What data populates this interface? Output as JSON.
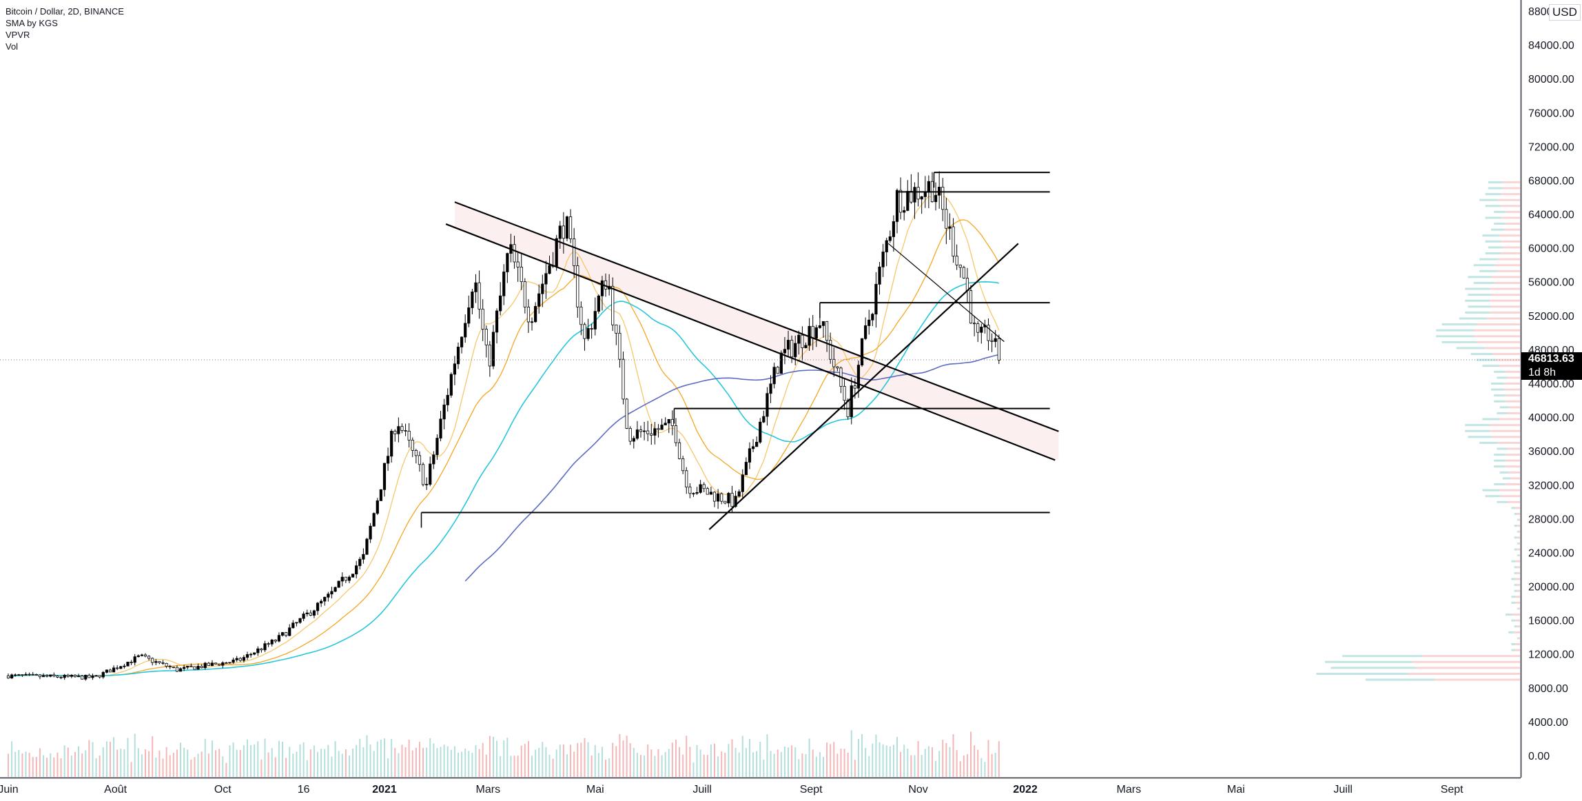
{
  "legend": {
    "symbol": "Bitcoin / Dollar, 2D, BINANCE",
    "indicator_sma": "SMA by KGS",
    "indicator_vpvr": "VPVR",
    "indicator_vol": "Vol"
  },
  "currency": "USD",
  "last_price": "46813.63",
  "countdown": "1d 8h",
  "colors": {
    "up": "#000000",
    "down": "#ffffff",
    "sma_short": "#f7c66b",
    "sma_mid": "#f5a623",
    "sma_long": "#26c6da",
    "sma_longest": "#5c6bc0",
    "vol_up": "#b2dfdb",
    "vol_down": "#f4b6b6",
    "channel": "#fbeff0"
  },
  "chart_data": {
    "type": "candlestick",
    "symbol": "Bitcoin / Dollar",
    "timeframe": "2D",
    "exchange": "BINANCE",
    "grid": false,
    "y_range": [
      -2500,
      88000
    ],
    "y_ticks": [
      "88000.00",
      "84000.00",
      "80000.00",
      "76000.00",
      "72000.00",
      "68000.00",
      "64000.00",
      "60000.00",
      "56000.00",
      "52000.00",
      "48000.00",
      "44000.00",
      "40000.00",
      "36000.00",
      "32000.00",
      "28000.00",
      "24000.00",
      "20000.00",
      "16000.00",
      "12000.00",
      "8000.00",
      "4000.00",
      "0.00"
    ],
    "x_ticks": [
      {
        "label": "Juin",
        "date": "2020-06-01"
      },
      {
        "label": "Août",
        "date": "2020-08-01"
      },
      {
        "label": "Oct",
        "date": "2020-10-01"
      },
      {
        "label": "16",
        "date": "2020-11-16"
      },
      {
        "label": "2021",
        "date": "2021-01-01"
      },
      {
        "label": "Mars",
        "date": "2021-03-01"
      },
      {
        "label": "Mai",
        "date": "2021-05-01"
      },
      {
        "label": "Juill",
        "date": "2021-07-01"
      },
      {
        "label": "Sept",
        "date": "2021-09-01"
      },
      {
        "label": "Nov",
        "date": "2021-11-01"
      },
      {
        "label": "2022",
        "date": "2022-01-01"
      },
      {
        "label": "Mars",
        "date": "2022-03-01"
      },
      {
        "label": "Mai",
        "date": "2022-05-01"
      },
      {
        "label": "Juill",
        "date": "2022-07-01"
      },
      {
        "label": "Sept",
        "date": "2022-09-01"
      }
    ],
    "price_keypoints": [
      [
        "2020-06-01",
        9500
      ],
      [
        "2020-07-20",
        9300
      ],
      [
        "2020-08-15",
        11800
      ],
      [
        "2020-09-05",
        10200
      ],
      [
        "2020-10-10",
        11300
      ],
      [
        "2020-11-01",
        13800
      ],
      [
        "2020-12-01",
        19000
      ],
      [
        "2020-12-20",
        23500
      ],
      [
        "2021-01-08",
        40000
      ],
      [
        "2021-01-25",
        32000
      ],
      [
        "2021-02-21",
        57000
      ],
      [
        "2021-03-01",
        46000
      ],
      [
        "2021-03-13",
        60000
      ],
      [
        "2021-03-25",
        52000
      ],
      [
        "2021-04-14",
        63500
      ],
      [
        "2021-04-25",
        49000
      ],
      [
        "2021-05-08",
        57000
      ],
      [
        "2021-05-20",
        38000
      ],
      [
        "2021-06-15",
        39000
      ],
      [
        "2021-06-22",
        32000
      ],
      [
        "2021-07-20",
        30000
      ],
      [
        "2021-08-14",
        47000
      ],
      [
        "2021-09-06",
        51500
      ],
      [
        "2021-09-22",
        41000
      ],
      [
        "2021-10-20",
        66000
      ],
      [
        "2021-11-10",
        67500
      ],
      [
        "2021-11-28",
        56000
      ],
      [
        "2021-12-04",
        49000
      ],
      [
        "2021-12-12",
        50000
      ],
      [
        "2021-12-17",
        46800
      ]
    ],
    "levels": [
      {
        "price": 69000,
        "from": "2021-11-10",
        "to": "2022-01-15"
      },
      {
        "price": 66700,
        "from": "2021-10-20",
        "to": "2022-01-15"
      },
      {
        "price": 53600,
        "from": "2021-09-06",
        "to": "2022-01-15"
      },
      {
        "price": 41100,
        "from": "2021-06-15",
        "to": "2022-01-15"
      },
      {
        "price": 28800,
        "from": "2021-01-22",
        "to": "2022-01-15"
      }
    ],
    "series": [
      {
        "kind": "sma",
        "period": 20
      },
      {
        "kind": "sma",
        "period": 50
      },
      {
        "kind": "sma",
        "period": 100
      },
      {
        "kind": "sma",
        "period": 200
      }
    ]
  }
}
